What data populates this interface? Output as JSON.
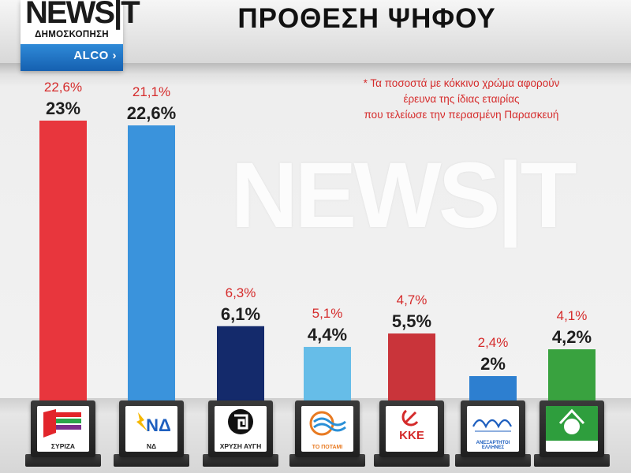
{
  "header": {
    "title": "ΠΡΟΘΕΣΗ ΨΗΦΟΥ",
    "logo_brand": "NEWS|T",
    "logo_subtitle": "ΔΗΜΟΣΚΟΠΗΣΗ",
    "logo_company": "ALCO"
  },
  "watermark": "NEWS|T",
  "note": {
    "line1": "* Τα ποσοστά με κόκκινο χρώμα αφορούν",
    "line2": "έρευνα της ίδιας εταιρίας",
    "line3": "που τελείωσε την περασμένη Παρασκευή"
  },
  "colors": {
    "previous_label": "#d52b2b",
    "current_label": "#1e1e1e"
  },
  "chart_data": {
    "type": "bar",
    "title": "ΠΡΟΘΕΣΗ ΨΗΦΟΥ",
    "xlabel": "",
    "ylabel": "",
    "ylim": [
      0,
      24
    ],
    "grid": false,
    "categories": [
      "ΣΥΡΙΖΑ",
      "ΝΔ",
      "ΧΡΥΣΗ ΑΥΓΗ",
      "ΤΟ ΠΟΤΑΜΙ",
      "ΚΚΕ",
      "ΑΝΕΞΑΡΤΗΤΟΙ ΕΛΛΗΝΕΣ",
      "ΠΑΣΟΚ"
    ],
    "series": [
      {
        "values": [
          23,
          22.6,
          6.1,
          4.4,
          5.5,
          2,
          4.2
        ],
        "labels": [
          "23%",
          "22,6%",
          "6,1%",
          "4,4%",
          "5,5%",
          "2%",
          "4,2%"
        ]
      },
      {
        "values": [
          22.6,
          21.1,
          6.3,
          5.1,
          4.7,
          2.4,
          4.1
        ],
        "labels": [
          "22,6%",
          "21,1%",
          "6,3%",
          "5,1%",
          "4,7%",
          "2,4%",
          "4,1%"
        ]
      }
    ],
    "bar_colors": [
      "#e8363d",
      "#3a93dc",
      "#142a6b",
      "#66bde8",
      "#c9343a",
      "#2d7fd0",
      "#39a23f"
    ],
    "logos": [
      {
        "text": "ΣΥΡΙΖΑ",
        "icon": "syriza-flag-icon"
      },
      {
        "text": "ΝΔ",
        "icon": "nd-torch-icon"
      },
      {
        "text": "ΧΡΥΣΗ ΑΥΓΗ",
        "icon": "meander-icon"
      },
      {
        "text": "ΤΟ ΠΟΤΑΜΙ",
        "icon": "river-wave-icon"
      },
      {
        "text": "ΚΚΕ",
        "icon": "hammer-sickle-icon"
      },
      {
        "text": "ΑΝΕΞΑΡΤΗΤΟΙ ΕΛΛΗΝΕΣ",
        "icon": "anel-script-icon"
      },
      {
        "text": "ΠΑΣΟΚ",
        "icon": "pasok-sun-icon"
      }
    ]
  }
}
